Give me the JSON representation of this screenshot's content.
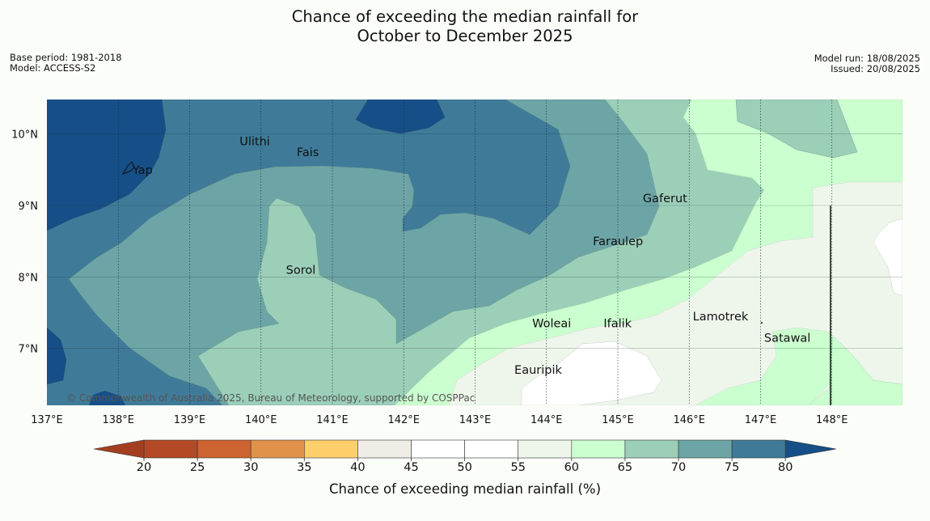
{
  "title": {
    "line1": "Chance of exceeding the median rainfall for",
    "line2": "October to December 2025"
  },
  "meta_left": {
    "base_period": "Base period: 1981-2018",
    "model": "Model: ACCESS-S2"
  },
  "meta_right": {
    "model_run": "Model run: 18/08/2025",
    "issued": "Issued: 20/08/2025"
  },
  "credit": "© Commonwealth of Australia 2025, Bureau of Meteorology, supported by COSPPac",
  "map": {
    "lon_labels": [
      "137°E",
      "138°E",
      "139°E",
      "140°E",
      "141°E",
      "142°E",
      "143°E",
      "144°E",
      "145°E",
      "146°E",
      "147°E",
      "148°E"
    ],
    "lat_labels": [
      "10°N",
      "9°N",
      "8°N",
      "7°N"
    ],
    "places": [
      {
        "name": "Yap",
        "lon": 138.2,
        "lat": 9.5
      },
      {
        "name": "Ulithi",
        "lon": 139.7,
        "lat": 9.9
      },
      {
        "name": "Fais",
        "lon": 140.5,
        "lat": 9.75
      },
      {
        "name": "Gaferut",
        "lon": 145.35,
        "lat": 9.1
      },
      {
        "name": "Faraulep",
        "lon": 144.65,
        "lat": 8.5
      },
      {
        "name": "Sorol",
        "lon": 140.35,
        "lat": 8.1
      },
      {
        "name": "Lamotrek",
        "lon": 146.05,
        "lat": 7.45
      },
      {
        "name": "Woleai",
        "lon": 143.8,
        "lat": 7.35
      },
      {
        "name": "Ifalik",
        "lon": 144.8,
        "lat": 7.35
      },
      {
        "name": "Satawal",
        "lon": 147.05,
        "lat": 7.15
      },
      {
        "name": "Eauripik",
        "lon": 143.55,
        "lat": 6.7
      }
    ]
  },
  "colorbar": {
    "label": "Chance of exceeding median rainfall (%)",
    "ticks": [
      "20",
      "25",
      "30",
      "35",
      "40",
      "45",
      "50",
      "55",
      "60",
      "65",
      "70",
      "75",
      "80"
    ],
    "colors": [
      "#b34a25",
      "#cc6330",
      "#e1924a",
      "#fccf6a",
      "#efede6",
      "#ffffff",
      "#ffffff",
      "#eef6ec",
      "#cbffcf",
      "#9ccfb8",
      "#6da5a6",
      "#3f7b99",
      "#164f87"
    ],
    "under_color": "#a33f20",
    "over_color": "#164f87"
  },
  "chart_data": {
    "type": "heatmap",
    "legend_position": "bottom",
    "value_bins_percent": [
      [
        "<20"
      ],
      [
        20,
        25
      ],
      [
        25,
        30
      ],
      [
        30,
        35
      ],
      [
        35,
        40
      ],
      [
        40,
        45
      ],
      [
        45,
        50
      ],
      [
        50,
        55
      ],
      [
        55,
        60
      ],
      [
        60,
        65
      ],
      [
        65,
        70
      ],
      [
        70,
        75
      ],
      [
        75,
        80
      ],
      [
        ">80"
      ]
    ],
    "lon_range": [
      137,
      149
    ],
    "lat_range": [
      6.2,
      10.5
    ]
  }
}
